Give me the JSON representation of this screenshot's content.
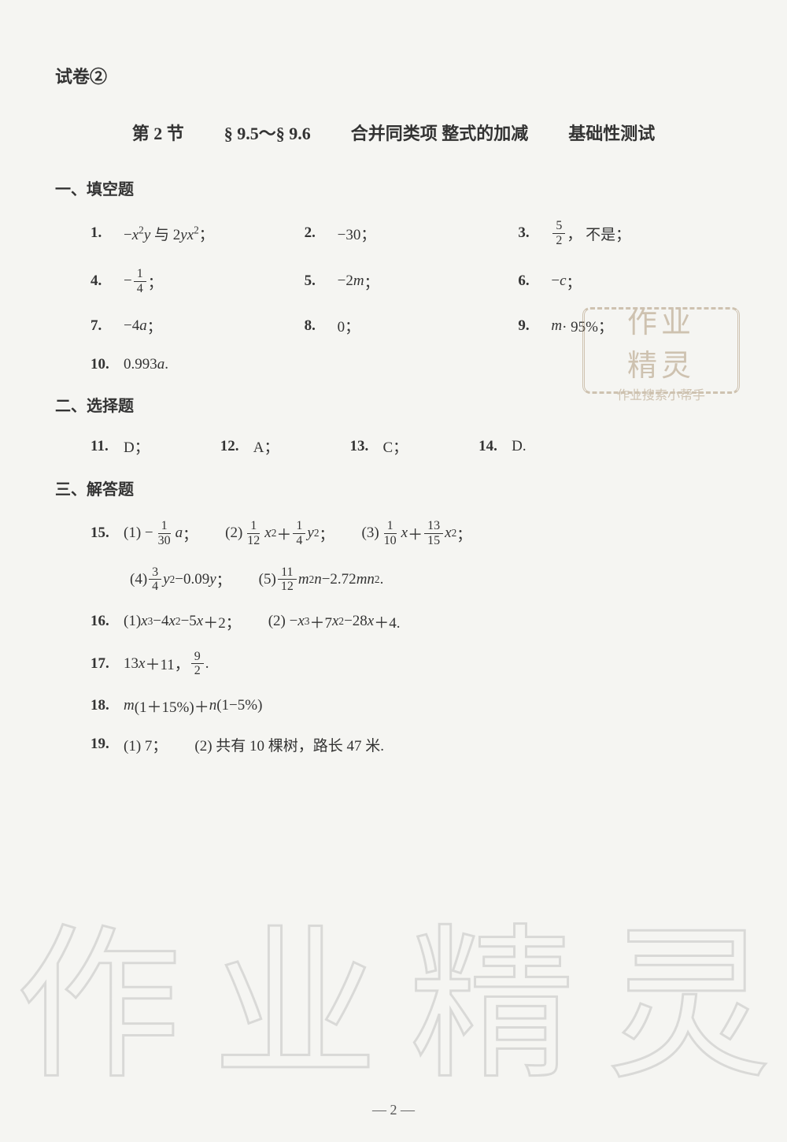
{
  "header": {
    "label": "试卷②"
  },
  "title": {
    "section": "第 2 节",
    "range": "§ 9.5～§ 9.6",
    "topic": "合并同类项  整式的加减",
    "type": "基础性测试"
  },
  "sections": {
    "fill": {
      "heading": "一、填空题"
    },
    "choice": {
      "heading": "二、选择题"
    },
    "solve": {
      "heading": "三、解答题"
    }
  },
  "fill": {
    "q1": {
      "num": "1.",
      "pre": "−",
      "var1": "x",
      "sup1": "2",
      "var2": "y",
      "mid": " 与 2",
      "var3": "yx",
      "sup3": "2",
      "tail": "；"
    },
    "q2": {
      "num": "2.",
      "val": "−30；"
    },
    "q3": {
      "num": "3.",
      "frac_n": "5",
      "frac_d": "2",
      "tail": "，  不是；"
    },
    "q4": {
      "num": "4.",
      "pre": "−",
      "frac_n": "1",
      "frac_d": "4",
      "tail": "；"
    },
    "q5": {
      "num": "5.",
      "pre": "−2",
      "var": "m",
      "tail": "；"
    },
    "q6": {
      "num": "6.",
      "pre": "−",
      "var": "c",
      "tail": "；"
    },
    "q7": {
      "num": "7.",
      "pre": "−4",
      "var": "a",
      "tail": "；"
    },
    "q8": {
      "num": "8.",
      "val": "0；"
    },
    "q9": {
      "num": "9.",
      "var": "m",
      "tail": " · 95%；"
    },
    "q10": {
      "num": "10.",
      "pre": "0.993",
      "var": "a",
      "tail": "."
    }
  },
  "choice": {
    "q11": {
      "num": "11.",
      "ans": "D；"
    },
    "q12": {
      "num": "12.",
      "ans": "A；"
    },
    "q13": {
      "num": "13.",
      "ans": "C；"
    },
    "q14": {
      "num": "14.",
      "ans": "D."
    }
  },
  "solve": {
    "q15": {
      "num": "15.",
      "p1": {
        "lbl": "(1) −",
        "fn": "1",
        "fd": "30",
        "var": "a",
        "tail": "；"
      },
      "p2": {
        "lbl": "(2) ",
        "fn1": "1",
        "fd1": "12",
        "v1": "x",
        "s1": "2",
        "plus": "＋",
        "fn2": "1",
        "fd2": "4",
        "v2": "y",
        "s2": "2",
        "tail": "；"
      },
      "p3": {
        "lbl": "(3) ",
        "fn1": "1",
        "fd1": "10",
        "v1": "x",
        "plus": "＋",
        "fn2": "13",
        "fd2": "15",
        "v2": "x",
        "s2": "2",
        "tail": "；"
      },
      "p4": {
        "lbl": "(4) ",
        "fn": "3",
        "fd": "4",
        "v1": "y",
        "s1": "2",
        "mid": "−0.09",
        "v2": "y",
        "tail": "；"
      },
      "p5": {
        "lbl": "(5) ",
        "fn": "11",
        "fd": "12",
        "v1": "m",
        "s1": "2",
        "v2": "n",
        "mid": "−2.72",
        "v3": "mn",
        "s3": "2",
        "tail": "."
      }
    },
    "q16": {
      "num": "16.",
      "p1": {
        "lbl": "(1) ",
        "expr_pre": "x",
        "s1": "3",
        "t1": "−4",
        "v2": "x",
        "s2": "2",
        "t2": "−5",
        "v3": "x",
        "t3": "＋2；"
      },
      "p2": {
        "lbl": "(2) −",
        "v1": "x",
        "s1": "3",
        "t1": "＋7",
        "v2": "x",
        "s2": "2",
        "t2": "−28",
        "v3": "x",
        "t3": "＋4."
      }
    },
    "q17": {
      "num": "17.",
      "pre": "13",
      "v1": "x",
      "mid": "＋11，  ",
      "fn": "9",
      "fd": "2",
      "tail": "."
    },
    "q18": {
      "num": "18.",
      "v1": "m",
      "p1": "(1＋15%)＋",
      "v2": "n",
      "p2": "(1−5%)"
    },
    "q19": {
      "num": "19.",
      "p1": "(1) 7；",
      "p2": "(2) 共有 10 棵树，路长 47 米."
    }
  },
  "stamp": {
    "big1": "作业",
    "big2": "精灵",
    "small": "作业搜索小帮手"
  },
  "watermark": {
    "c1": "作",
    "c2": "业",
    "c3": "精",
    "c4": "灵"
  },
  "page": {
    "num": "—  2  —"
  },
  "style": {
    "bg": "#f5f5f2",
    "text": "#333",
    "stamp_color": "#a89070",
    "wm_color": "#999",
    "title_fontsize": 22,
    "body_fontsize": 19
  }
}
